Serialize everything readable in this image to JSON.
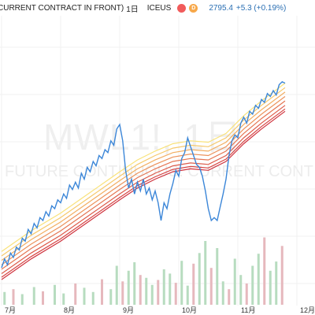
{
  "header": {
    "title": "CURRENT CONTRACT IN FRONT)",
    "interval": "1日",
    "exchange": "ICEUS",
    "badge_red": "",
    "badge_orange": "D",
    "price": "2795.4",
    "change": "+5.3 (+0.19%)"
  },
  "watermark": {
    "symbol": "MWL1!, 1日",
    "description": "FUTURE CONTINUOUS: CURRENT CONT"
  },
  "colors": {
    "price_line": "#3b86d8",
    "volume_up": "#b7dcbf",
    "volume_down": "#e6b8bd",
    "grid": "#f0f0f0",
    "ribbon": [
      "#f9e27a",
      "#f6c96b",
      "#f2ae62",
      "#ec925b",
      "#e57653",
      "#dd5c4b",
      "#d64443",
      "#cf333e"
    ]
  },
  "chart_data": {
    "type": "line",
    "x_ticks": [
      "7月",
      "8月",
      "9月",
      "10月",
      "11月",
      "12月"
    ],
    "price_series": {
      "points": [
        [
          0,
          2170
        ],
        [
          0.05,
          2200
        ],
        [
          0.1,
          2180
        ],
        [
          0.15,
          2220
        ],
        [
          0.2,
          2205
        ],
        [
          0.25,
          2240
        ],
        [
          0.3,
          2230
        ],
        [
          0.35,
          2270
        ],
        [
          0.4,
          2260
        ],
        [
          0.45,
          2300
        ],
        [
          0.5,
          2285
        ],
        [
          0.55,
          2320
        ],
        [
          0.6,
          2305
        ],
        [
          0.65,
          2340
        ],
        [
          0.7,
          2330
        ],
        [
          0.75,
          2360
        ],
        [
          0.8,
          2345
        ],
        [
          0.85,
          2380
        ],
        [
          0.9,
          2370
        ],
        [
          0.95,
          2400
        ],
        [
          1.0,
          2390
        ],
        [
          1.05,
          2420
        ],
        [
          1.1,
          2405
        ],
        [
          1.15,
          2450
        ],
        [
          1.2,
          2435
        ],
        [
          1.25,
          2460
        ],
        [
          1.3,
          2440
        ],
        [
          1.35,
          2490
        ],
        [
          1.4,
          2470
        ],
        [
          1.45,
          2510
        ],
        [
          1.5,
          2495
        ],
        [
          1.55,
          2530
        ],
        [
          1.6,
          2515
        ],
        [
          1.65,
          2550
        ],
        [
          1.7,
          2540
        ],
        [
          1.75,
          2570
        ],
        [
          1.8,
          2560
        ],
        [
          1.85,
          2600
        ],
        [
          1.9,
          2585
        ],
        [
          1.95,
          2640
        ],
        [
          2.0,
          2655
        ],
        [
          2.05,
          2600
        ],
        [
          2.1,
          2500
        ],
        [
          2.15,
          2440
        ],
        [
          2.2,
          2470
        ],
        [
          2.25,
          2420
        ],
        [
          2.3,
          2460
        ],
        [
          2.35,
          2430
        ],
        [
          2.4,
          2470
        ],
        [
          2.45,
          2420
        ],
        [
          2.5,
          2440
        ],
        [
          2.55,
          2400
        ],
        [
          2.6,
          2430
        ],
        [
          2.65,
          2390
        ],
        [
          2.7,
          2330
        ],
        [
          2.75,
          2390
        ],
        [
          2.8,
          2370
        ],
        [
          2.85,
          2420
        ],
        [
          2.9,
          2455
        ],
        [
          2.95,
          2500
        ],
        [
          3.0,
          2480
        ],
        [
          3.05,
          2540
        ],
        [
          3.1,
          2560
        ],
        [
          3.15,
          2610
        ],
        [
          3.2,
          2580
        ],
        [
          3.25,
          2550
        ],
        [
          3.3,
          2520
        ],
        [
          3.35,
          2510
        ],
        [
          3.4,
          2480
        ],
        [
          3.45,
          2430
        ],
        [
          3.5,
          2370
        ],
        [
          3.55,
          2330
        ],
        [
          3.6,
          2340
        ],
        [
          3.65,
          2330
        ],
        [
          3.7,
          2375
        ],
        [
          3.75,
          2420
        ],
        [
          3.8,
          2470
        ],
        [
          3.85,
          2550
        ],
        [
          3.9,
          2600
        ],
        [
          3.95,
          2620
        ],
        [
          4.0,
          2610
        ],
        [
          4.05,
          2660
        ],
        [
          4.1,
          2680
        ],
        [
          4.15,
          2660
        ],
        [
          4.2,
          2700
        ],
        [
          4.25,
          2690
        ],
        [
          4.3,
          2720
        ],
        [
          4.35,
          2710
        ],
        [
          4.4,
          2740
        ],
        [
          4.45,
          2730
        ],
        [
          4.5,
          2760
        ],
        [
          4.55,
          2750
        ],
        [
          4.6,
          2770
        ],
        [
          4.65,
          2755
        ],
        [
          4.7,
          2790
        ],
        [
          4.75,
          2800
        ],
        [
          4.8,
          2795
        ]
      ]
    },
    "ribbon_base": [
      [
        0,
        2130
      ],
      [
        0.5,
        2200
      ],
      [
        1.0,
        2260
      ],
      [
        1.5,
        2330
      ],
      [
        2.0,
        2400
      ],
      [
        2.3,
        2440
      ],
      [
        2.6,
        2470
      ],
      [
        2.9,
        2495
      ],
      [
        3.2,
        2505
      ],
      [
        3.5,
        2500
      ],
      [
        3.8,
        2530
      ],
      [
        4.1,
        2590
      ],
      [
        4.4,
        2640
      ],
      [
        4.8,
        2700
      ]
    ],
    "ribbon_offsets": [
      95,
      80,
      65,
      50,
      35,
      20,
      8,
      0
    ],
    "volume": [
      [
        0.05,
        0.18
      ],
      [
        0.2,
        0.22
      ],
      [
        0.35,
        0.15
      ],
      [
        0.55,
        0.25
      ],
      [
        0.7,
        0.19
      ],
      [
        0.9,
        0.28
      ],
      [
        1.05,
        0.16
      ],
      [
        1.25,
        0.3
      ],
      [
        1.4,
        0.24
      ],
      [
        1.55,
        0.18
      ],
      [
        1.7,
        0.36
      ],
      [
        1.85,
        0.22
      ],
      [
        1.95,
        0.55
      ],
      [
        2.05,
        0.33
      ],
      [
        2.15,
        0.48
      ],
      [
        2.25,
        0.6
      ],
      [
        2.35,
        0.42
      ],
      [
        2.45,
        0.38
      ],
      [
        2.55,
        0.28
      ],
      [
        2.65,
        0.35
      ],
      [
        2.75,
        0.5
      ],
      [
        2.85,
        0.44
      ],
      [
        2.95,
        0.31
      ],
      [
        3.05,
        0.62
      ],
      [
        3.15,
        0.27
      ],
      [
        3.25,
        0.58
      ],
      [
        3.35,
        0.73
      ],
      [
        3.45,
        0.9
      ],
      [
        3.55,
        0.52
      ],
      [
        3.65,
        0.8
      ],
      [
        3.75,
        0.33
      ],
      [
        3.85,
        0.22
      ],
      [
        3.95,
        0.65
      ],
      [
        4.05,
        0.42
      ],
      [
        4.15,
        0.3
      ],
      [
        4.25,
        0.55
      ],
      [
        4.35,
        0.72
      ],
      [
        4.45,
        0.95
      ],
      [
        4.55,
        0.48
      ],
      [
        4.65,
        0.61
      ],
      [
        4.75,
        0.83
      ]
    ],
    "y_range": [
      2050,
      2850
    ]
  }
}
